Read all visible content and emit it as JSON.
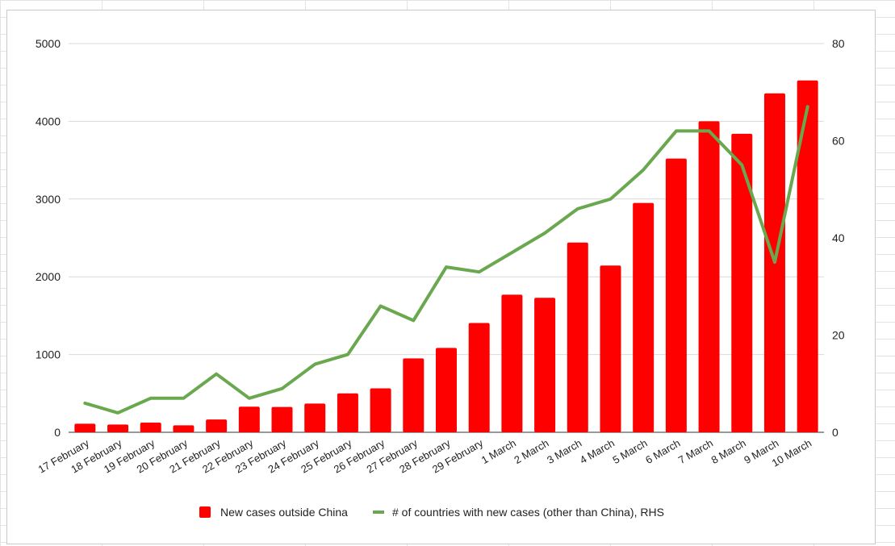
{
  "chart_data": {
    "type": "bar",
    "categories": [
      "17 February",
      "18 February",
      "19 February",
      "20 February",
      "21 February",
      "22 February",
      "23 February",
      "24 February",
      "25 February",
      "26 February",
      "27 February",
      "28 February",
      "29 February",
      "1 March",
      "2 March",
      "3 March",
      "4 March",
      "5 March",
      "6 March",
      "7 March",
      "8 March",
      "9 March",
      "10 March"
    ],
    "series": [
      {
        "name": "New cases outside China",
        "type": "bar",
        "axis": "left",
        "color": "#ff0000",
        "values": [
          110,
          100,
          125,
          90,
          165,
          330,
          325,
          370,
          500,
          565,
          950,
          1085,
          1405,
          1770,
          1730,
          2440,
          2145,
          2950,
          3520,
          4000,
          3840,
          4360,
          4525
        ]
      },
      {
        "name": "# of countries with new cases (other than China), RHS",
        "type": "line",
        "axis": "right",
        "color": "#6aa84f",
        "values": [
          6,
          4,
          7,
          7,
          12,
          7,
          9,
          14,
          16,
          26,
          23,
          34,
          33,
          37,
          41,
          46,
          48,
          54,
          62,
          62,
          55,
          35,
          67
        ]
      }
    ],
    "y_left": {
      "min": 0,
      "max": 5000,
      "ticks": [
        "0",
        "1000",
        "2000",
        "3000",
        "4000",
        "5000"
      ]
    },
    "y_right": {
      "min": 0,
      "max": 80,
      "ticks": [
        "0",
        "20",
        "40",
        "60",
        "80"
      ]
    },
    "grid": true,
    "legend_position": "bottom",
    "title": "",
    "xlabel": "",
    "ylabel": ""
  }
}
